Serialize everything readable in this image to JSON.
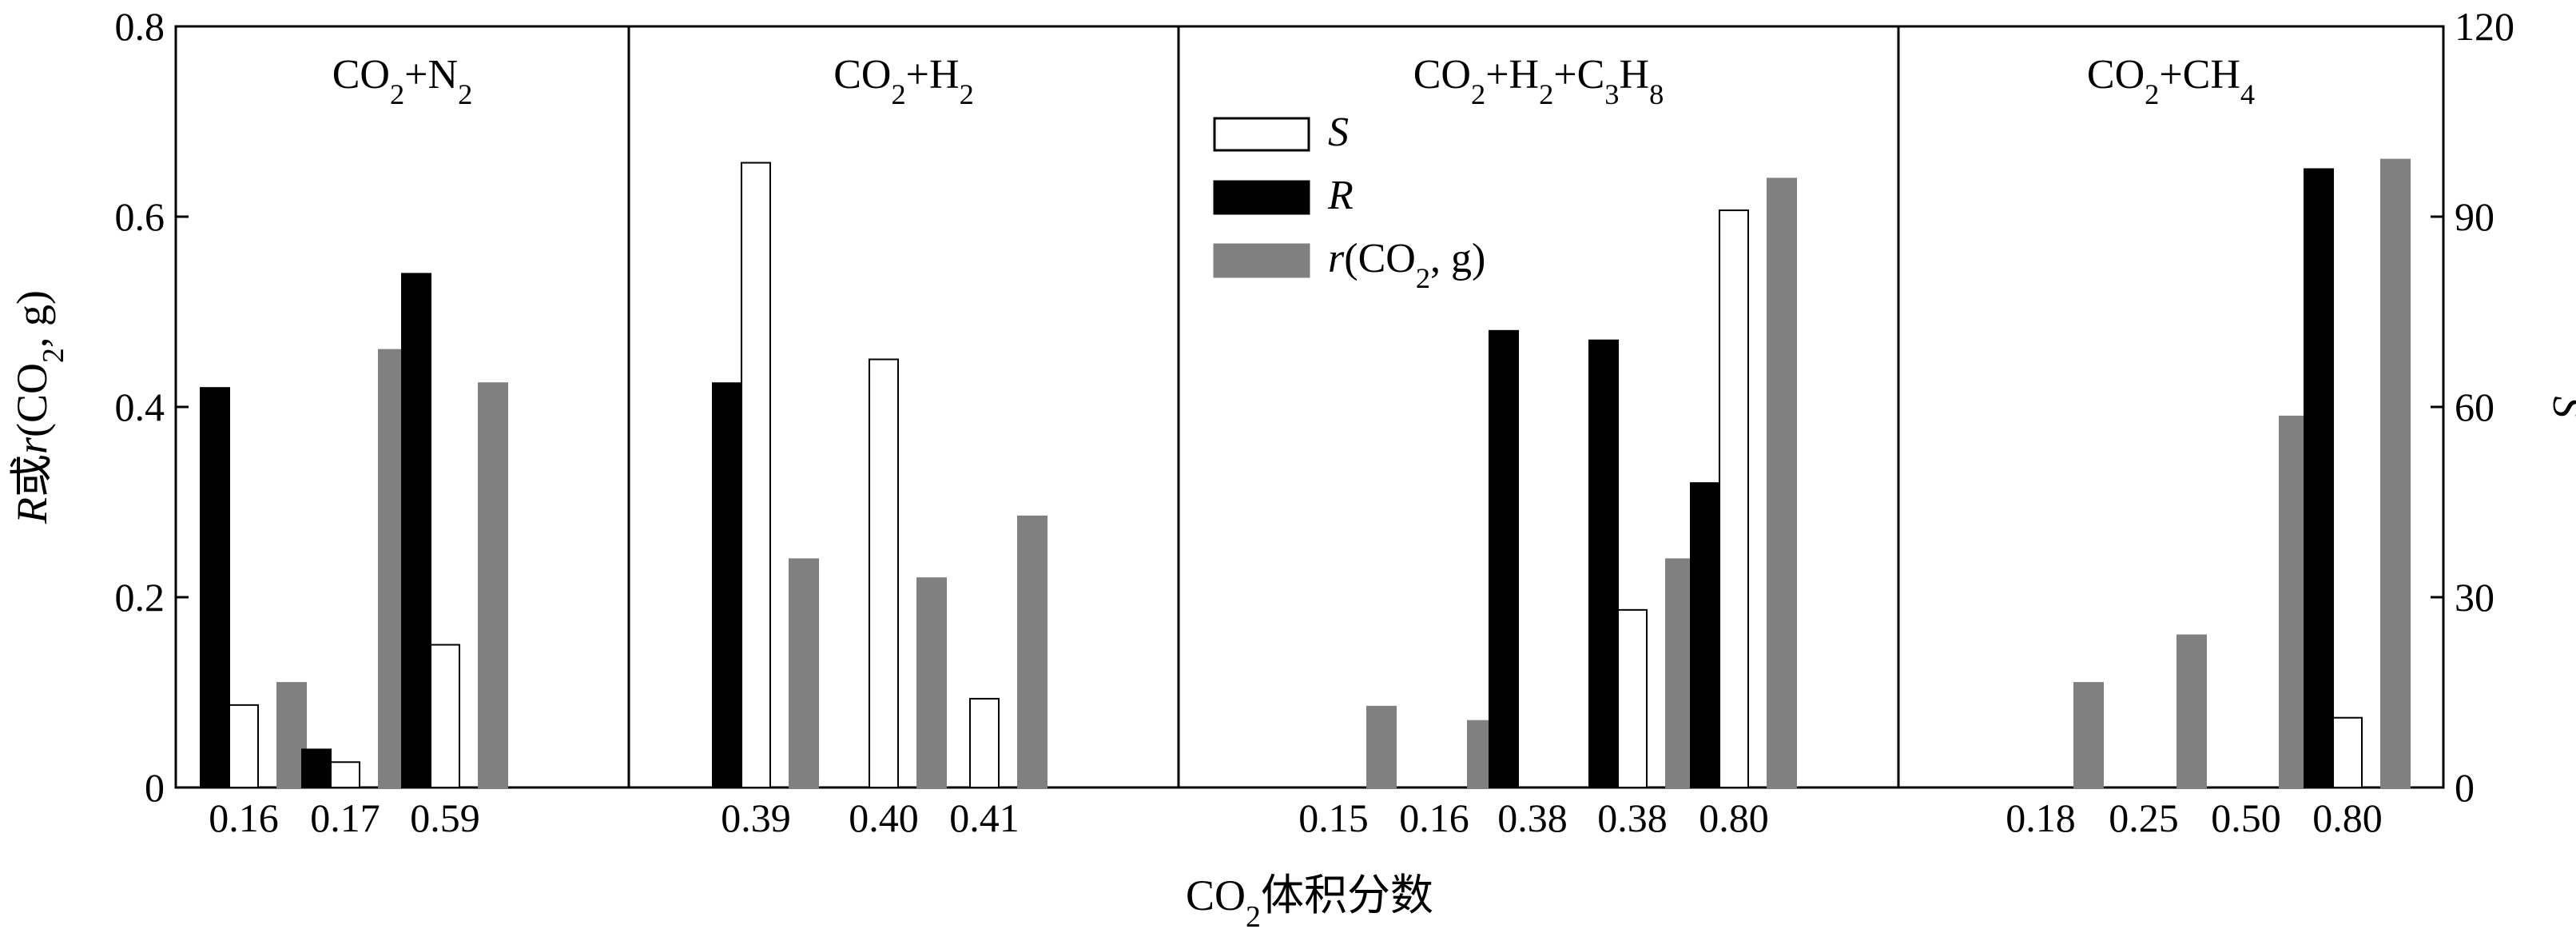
{
  "chart_data": {
    "type": "bar",
    "xlabel": "CO2体积分数",
    "ylabel_left": "R或r(CO2, g)",
    "ylabel_right": "S",
    "ylim_left": [
      0,
      0.8
    ],
    "yticks_left": [
      "0",
      "0.2",
      "0.4",
      "0.6",
      "0.8"
    ],
    "ylim_right": [
      0,
      120
    ],
    "yticks_right": [
      "0",
      "30",
      "60",
      "90",
      "120"
    ],
    "legend_position": "inside, upper middle (third panel)",
    "legend": [
      {
        "key": "S",
        "label": "S",
        "color": "#ffffff"
      },
      {
        "key": "R",
        "label": "R",
        "color": "#000000"
      },
      {
        "key": "r",
        "label": "r(CO2, g)",
        "color": "#808080"
      }
    ],
    "panels": [
      {
        "title": "CO2+N2",
        "categories": [
          "0.16",
          "0.17",
          "0.59"
        ],
        "R": [
          0.42,
          0.04,
          0.54
        ],
        "S": [
          13,
          4,
          22.5
        ],
        "r": [
          0.11,
          0.46,
          0.425
        ]
      },
      {
        "title": "CO2+H2",
        "categories": [
          "0.39",
          "0.40",
          "0.41"
        ],
        "R": [
          0.425,
          0,
          0
        ],
        "S": [
          98.5,
          67.5,
          14
        ],
        "r": [
          0.24,
          0.22,
          0.285
        ]
      },
      {
        "title": "CO2+H2+C3H8",
        "categories": [
          "0.15",
          "0.16",
          "0.38",
          "0.38",
          "0.80"
        ],
        "R": [
          0,
          0,
          0.48,
          0.47,
          0.32
        ],
        "S": [
          0,
          0,
          0,
          28,
          91
        ],
        "r": [
          0.085,
          0.07,
          0,
          0.24,
          0.64
        ]
      },
      {
        "title": "CO2+CH4",
        "categories": [
          "0.18",
          "0.25",
          "0.50",
          "0.80"
        ],
        "R": [
          0,
          0,
          0,
          0.65
        ],
        "S": [
          0,
          0,
          0,
          11
        ],
        "r": [
          0.11,
          0.16,
          0.39,
          0.66
        ]
      }
    ]
  }
}
